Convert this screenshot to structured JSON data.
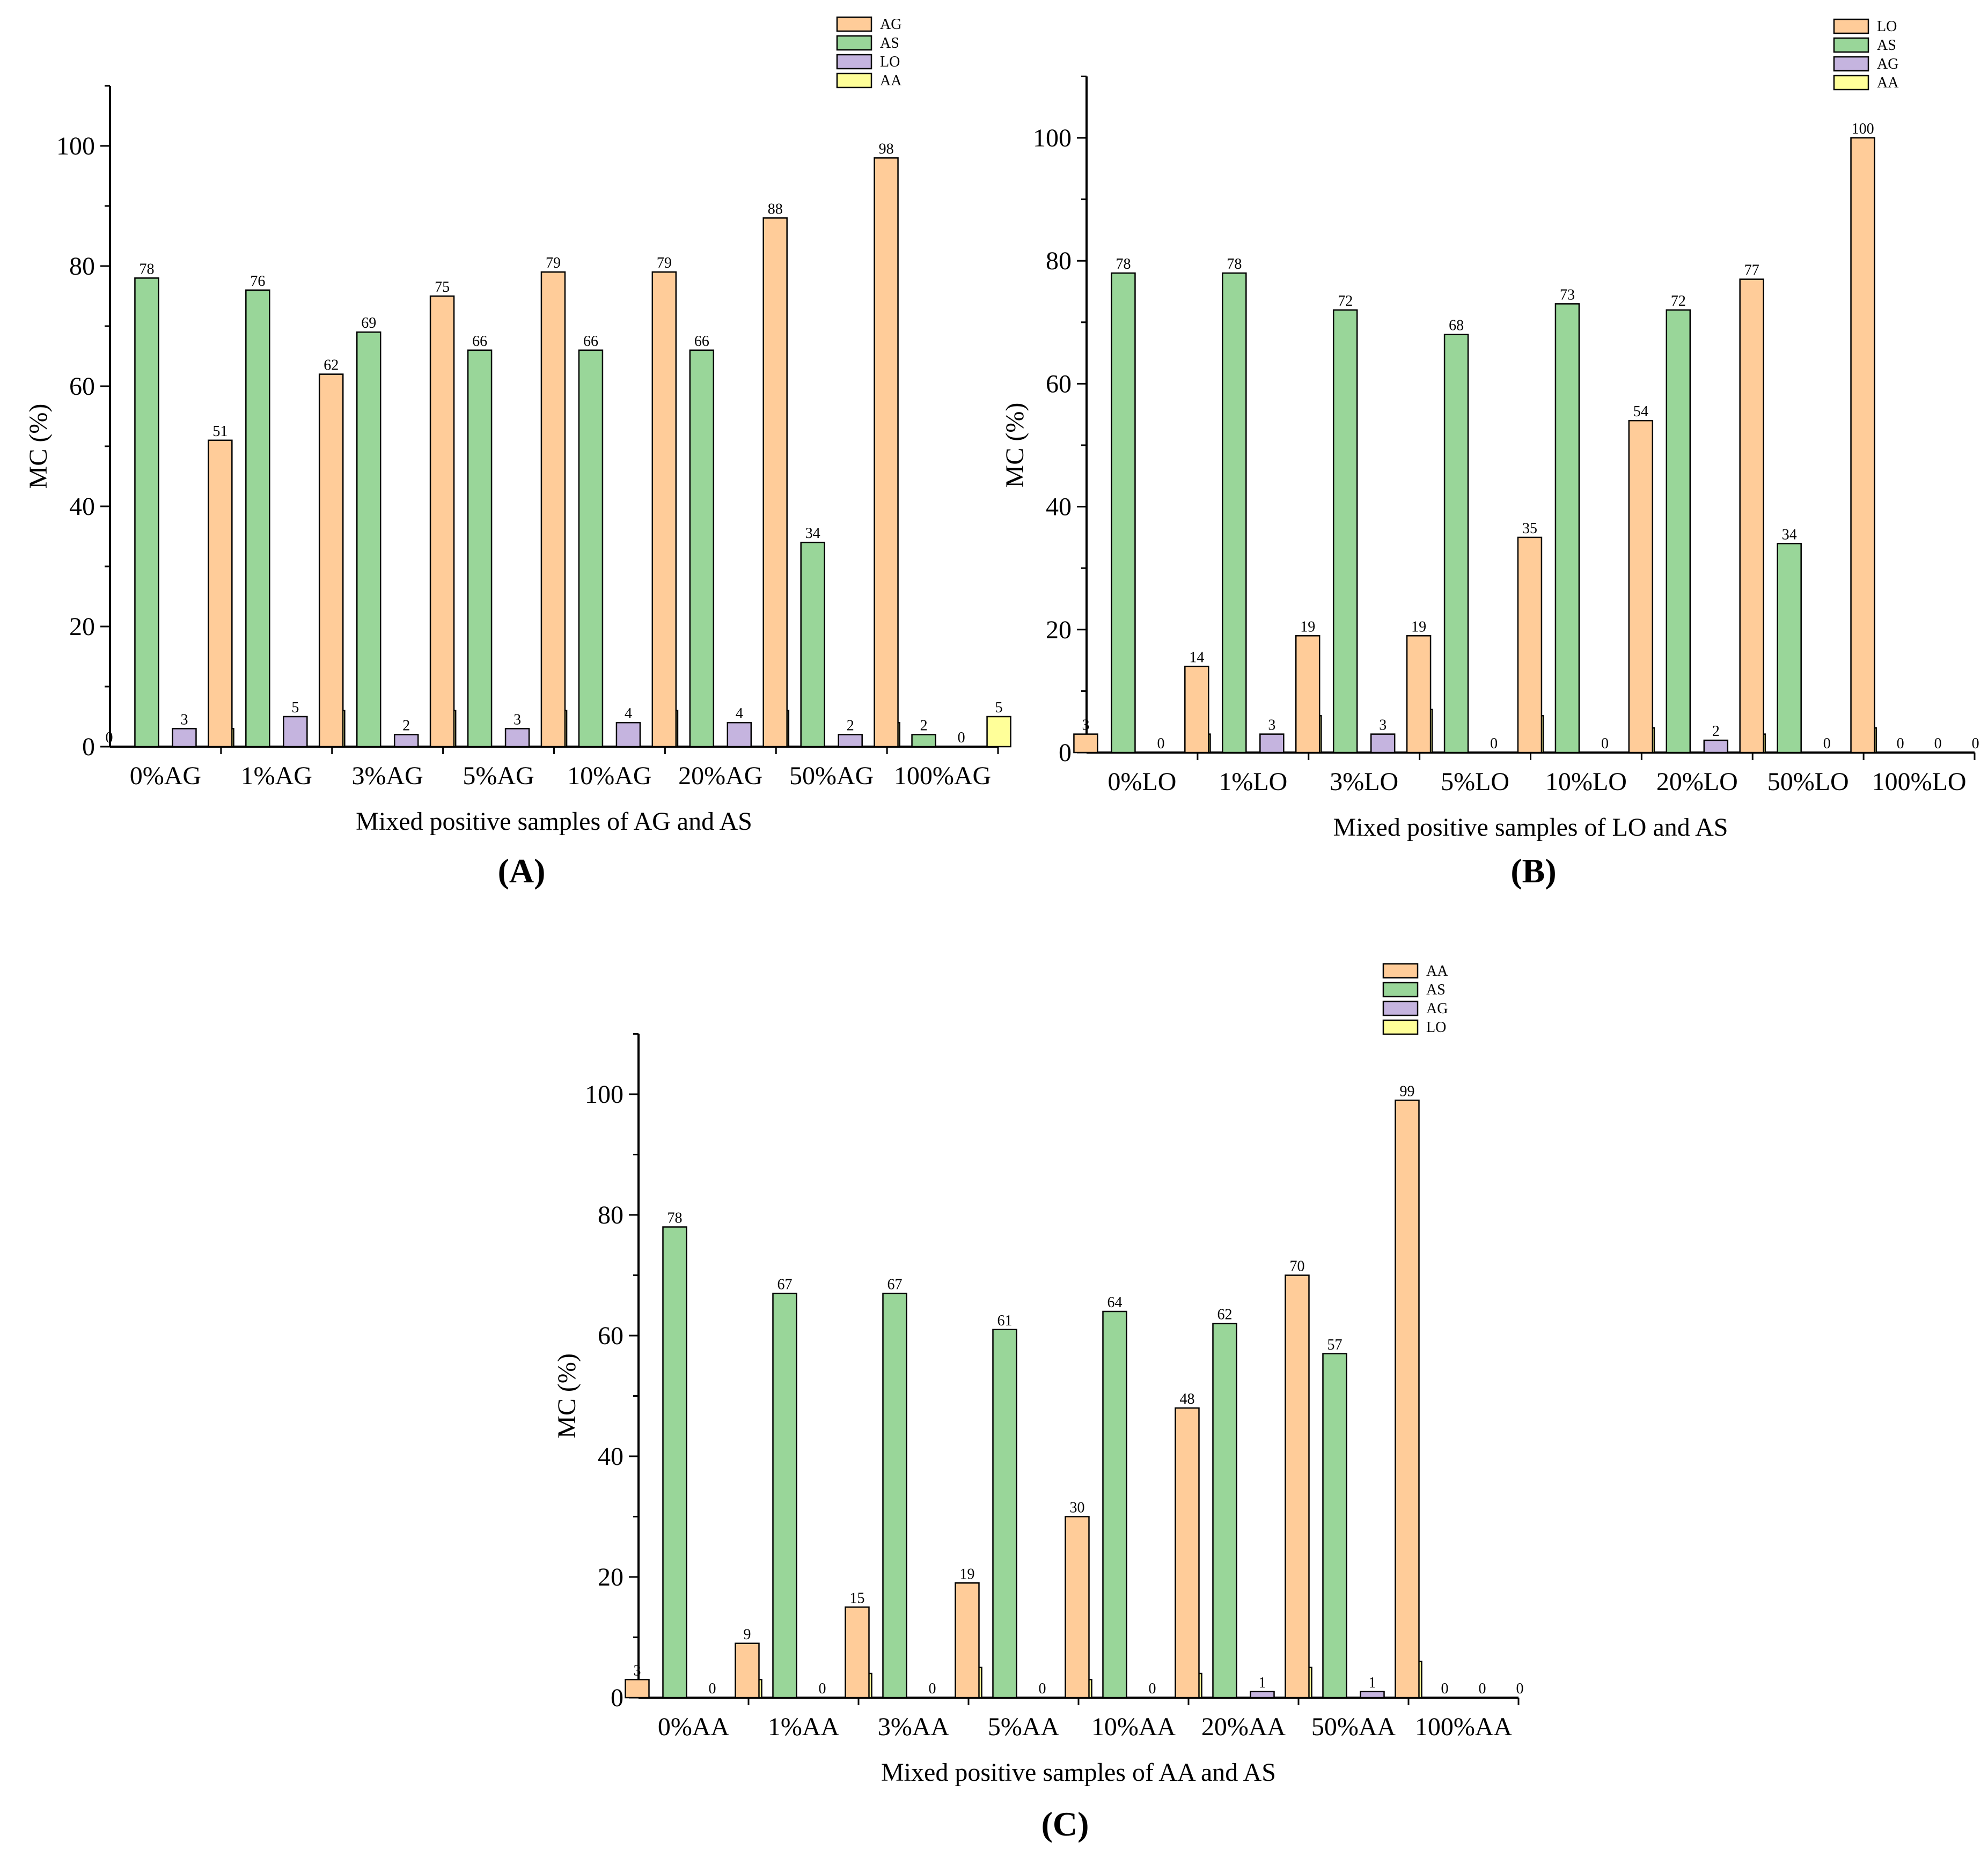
{
  "colors": {
    "orange": "#FFCC99",
    "green": "#99D699",
    "purple": "#C5B4DF",
    "yellow": "#FFFF99"
  },
  "chart_data": [
    {
      "type": "bar",
      "panel": "(A)",
      "xlabel": "Mixed positive samples of AG and AS",
      "ylabel": "MC (%)",
      "ylim": [
        0,
        110
      ],
      "yticks": [
        0,
        20,
        40,
        60,
        80,
        100
      ],
      "categories": [
        "0%AG",
        "1%AG",
        "3%AG",
        "5%AG",
        "10%AG",
        "20%AG",
        "50%AG",
        "100%AG"
      ],
      "series": [
        {
          "name": "AG",
          "color_key": "orange",
          "values": [
            0,
            51,
            62,
            75,
            79,
            79,
            88,
            98
          ]
        },
        {
          "name": "AS",
          "color_key": "green",
          "values": [
            78,
            76,
            69,
            66,
            66,
            66,
            34,
            2
          ]
        },
        {
          "name": "LO",
          "color_key": "purple",
          "values": [
            3,
            5,
            2,
            3,
            4,
            4,
            2,
            0
          ]
        },
        {
          "name": "AA",
          "color_key": "yellow",
          "values": [
            3,
            6,
            6,
            6,
            6,
            6,
            4,
            5
          ]
        }
      ]
    },
    {
      "type": "bar",
      "panel": "(B)",
      "xlabel": "Mixed positive samples of LO and AS",
      "ylabel": "MC (%)",
      "ylim": [
        0,
        110
      ],
      "yticks": [
        0,
        20,
        40,
        60,
        80,
        100
      ],
      "categories": [
        "0%LO",
        "1%LO",
        "3%LO",
        "5%LO",
        "10%LO",
        "20%LO",
        "50%LO",
        "100%LO"
      ],
      "series": [
        {
          "name": "LO",
          "color_key": "orange",
          "values": [
            3,
            14,
            19,
            19,
            35,
            54,
            77,
            100
          ]
        },
        {
          "name": "AS",
          "color_key": "green",
          "values": [
            78,
            78,
            72,
            68,
            73,
            72,
            34,
            0
          ]
        },
        {
          "name": "AG",
          "color_key": "purple",
          "values": [
            0,
            3,
            3,
            0,
            0,
            2,
            0,
            0
          ]
        },
        {
          "name": "AA",
          "color_key": "yellow",
          "values": [
            3,
            6,
            7,
            6,
            4,
            3,
            4,
            0
          ]
        }
      ]
    },
    {
      "type": "bar",
      "panel": "(C)",
      "xlabel": "Mixed positive samples of AA and AS",
      "ylabel": "MC (%)",
      "ylim": [
        0,
        110
      ],
      "yticks": [
        0,
        20,
        40,
        60,
        80,
        100
      ],
      "categories": [
        "0%AA",
        "1%AA",
        "3%AA",
        "5%AA",
        "10%AA",
        "20%AA",
        "50%AA",
        "100%AA"
      ],
      "series": [
        {
          "name": "AA",
          "color_key": "orange",
          "values": [
            3,
            9,
            15,
            19,
            30,
            48,
            70,
            99
          ]
        },
        {
          "name": "AS",
          "color_key": "green",
          "values": [
            78,
            67,
            67,
            61,
            64,
            62,
            57,
            0
          ]
        },
        {
          "name": "AG",
          "color_key": "purple",
          "values": [
            0,
            0,
            0,
            0,
            0,
            1,
            1,
            0
          ]
        },
        {
          "name": "LO",
          "color_key": "yellow",
          "values": [
            3,
            4,
            5,
            3,
            4,
            5,
            6,
            0
          ]
        }
      ]
    }
  ]
}
